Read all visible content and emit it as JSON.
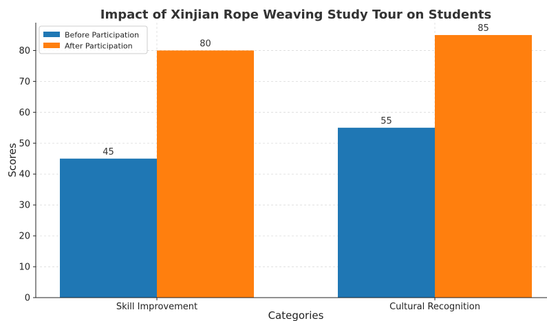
{
  "chart_data": {
    "type": "bar",
    "title": "Impact of Xinjian Rope Weaving Study Tour on Students",
    "xlabel": "Categories",
    "ylabel": "Scores",
    "categories": [
      "Skill Improvement",
      "Cultural Recognition"
    ],
    "series": [
      {
        "name": "Before Participation",
        "values": [
          45,
          55
        ],
        "color": "#1f77b4"
      },
      {
        "name": "After Participation",
        "values": [
          80,
          85
        ],
        "color": "#ff7f0e"
      }
    ],
    "ylim": [
      0,
      89
    ],
    "yticks": [
      0,
      10,
      20,
      30,
      40,
      50,
      60,
      70,
      80
    ],
    "grid": true,
    "legend_position": "top-left",
    "show_data_labels": true
  }
}
